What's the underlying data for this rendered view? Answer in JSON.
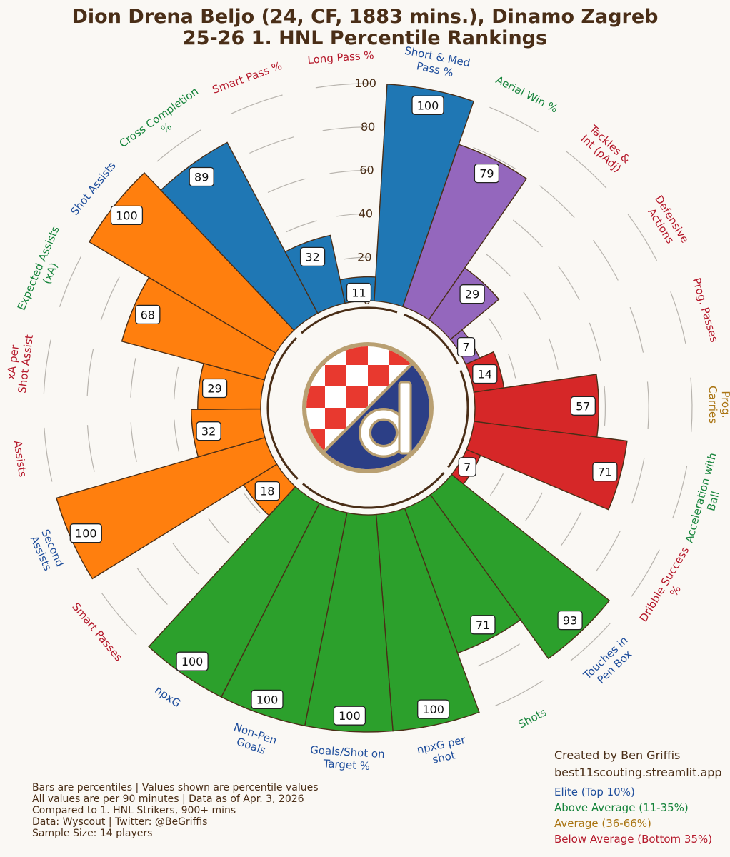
{
  "title": {
    "line1": "Dion Drena Beljo (24, CF, 1883 mins.), Dinamo Zagreb",
    "line2": "25-26 1. HNL Percentile Rankings"
  },
  "colors": {
    "background": "#faf8f4",
    "text": "#4a2e17",
    "passing": "#1f77b4",
    "defending": "#9467bd",
    "carrying": "#d62728",
    "shooting": "#2ca02c",
    "creating": "#ff7f0e",
    "elite": "#1f4e9c",
    "above_average": "#16843b",
    "average": "#a97412",
    "below_average": "#b5192b"
  },
  "chart_data": {
    "type": "radial-bar",
    "r_ticks": [
      0,
      20,
      40,
      60,
      80,
      100
    ],
    "r_range": [
      0,
      100
    ],
    "bars": [
      {
        "metric": "Prog. Passes",
        "value": 14,
        "group": "carrying",
        "tier": "below_average"
      },
      {
        "metric": "Prog. Carries",
        "value": 57,
        "group": "carrying",
        "tier": "average"
      },
      {
        "metric": "Acceleration with Ball",
        "value": 71,
        "group": "carrying",
        "tier": "above_average"
      },
      {
        "metric": "Dribble Success %",
        "value": 7,
        "group": "carrying",
        "tier": "below_average"
      },
      {
        "metric": "Touches in Pen Box",
        "value": 93,
        "group": "shooting",
        "tier": "elite"
      },
      {
        "metric": "Shots",
        "value": 71,
        "group": "shooting",
        "tier": "above_average"
      },
      {
        "metric": "npxG per shot",
        "value": 100,
        "group": "shooting",
        "tier": "elite"
      },
      {
        "metric": "Goals/Shot on Target %",
        "value": 100,
        "group": "shooting",
        "tier": "elite"
      },
      {
        "metric": "Non-Pen Goals",
        "value": 100,
        "group": "shooting",
        "tier": "elite"
      },
      {
        "metric": "npxG",
        "value": 100,
        "group": "shooting",
        "tier": "elite"
      },
      {
        "metric": "Smart Passes",
        "value": 18,
        "group": "creating",
        "tier": "below_average"
      },
      {
        "metric": "Second Assists",
        "value": 100,
        "group": "creating",
        "tier": "elite"
      },
      {
        "metric": "Assists",
        "value": 32,
        "group": "creating",
        "tier": "below_average"
      },
      {
        "metric": "xA per Shot Assist",
        "value": 29,
        "group": "creating",
        "tier": "below_average"
      },
      {
        "metric": "Expected Assists (xA)",
        "value": 68,
        "group": "creating",
        "tier": "above_average"
      },
      {
        "metric": "Shot Assists",
        "value": 100,
        "group": "creating",
        "tier": "elite"
      },
      {
        "metric": "Cross Completion %",
        "value": 89,
        "group": "passing",
        "tier": "above_average"
      },
      {
        "metric": "Smart Pass %",
        "value": 32,
        "group": "passing",
        "tier": "below_average"
      },
      {
        "metric": "Long Pass %",
        "value": 11,
        "group": "passing",
        "tier": "below_average"
      },
      {
        "metric": "Short & Med Pass %",
        "value": 100,
        "group": "passing",
        "tier": "elite"
      },
      {
        "metric": "Aerial Win %",
        "value": 79,
        "group": "defending",
        "tier": "above_average"
      },
      {
        "metric": "Tackles & Int (pAdj)",
        "value": 29,
        "group": "defending",
        "tier": "below_average"
      },
      {
        "metric": "Defensive Actions",
        "value": 7,
        "group": "defending",
        "tier": "below_average"
      }
    ]
  },
  "footer": {
    "lines": [
      "Bars are percentiles | Values shown are percentile values",
      "All values are per 90 minutes | Data as of Apr. 3, 2026",
      "Compared to 1. HNL Strikers, 900+ mins",
      "Data: Wyscout | Twitter: @BeGriffis",
      "Sample Size: 14 players"
    ]
  },
  "credits": {
    "creator": "Created by Ben Griffis",
    "site": "best11scouting.streamlit.app"
  },
  "legend": [
    {
      "label": "Elite (Top 10%)",
      "tier": "elite"
    },
    {
      "label": "Above Average (11-35%)",
      "tier": "above_average"
    },
    {
      "label": "Average (36-66%)",
      "tier": "average"
    },
    {
      "label": "Below Average (Bottom 35%)",
      "tier": "below_average"
    }
  ]
}
